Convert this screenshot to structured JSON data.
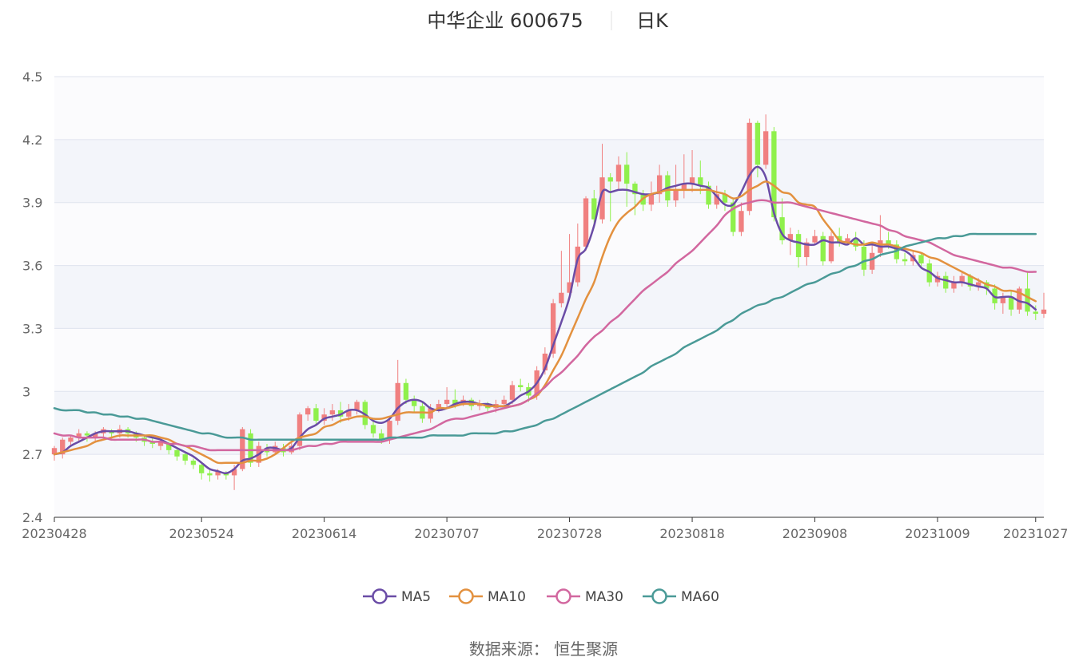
{
  "title": {
    "name": "中华企业 600675",
    "period": "日K"
  },
  "source": "数据来源： 恒生聚源",
  "chart_data": {
    "type": "candlestick",
    "y_ticks": [
      "2.4",
      "2.7",
      "3",
      "3.3",
      "3.6",
      "3.9",
      "4.2",
      "4.5"
    ],
    "y_tick_values": [
      2.4,
      2.7,
      3.0,
      3.3,
      3.6,
      3.9,
      4.2,
      4.5
    ],
    "ylim": [
      2.4,
      4.5
    ],
    "x_ticks": [
      "20230428",
      "20230524",
      "20230614",
      "20230707",
      "20230728",
      "20230818",
      "20230908",
      "20231009",
      "20231027"
    ],
    "x_tick_indices": [
      0,
      18,
      33,
      48,
      63,
      78,
      93,
      108,
      120
    ],
    "up_color": "#f08080",
    "down_color": "#8ff04c",
    "grid": true,
    "legend_position": "bottom",
    "candles": [
      [
        2.7,
        2.73,
        2.67,
        2.74
      ],
      [
        2.7,
        2.77,
        2.68,
        2.78
      ],
      [
        2.76,
        2.78,
        2.74,
        2.79
      ],
      [
        2.78,
        2.8,
        2.76,
        2.82
      ],
      [
        2.8,
        2.79,
        2.76,
        2.81
      ],
      [
        2.78,
        2.8,
        2.76,
        2.81
      ],
      [
        2.8,
        2.82,
        2.78,
        2.83
      ],
      [
        2.81,
        2.8,
        2.78,
        2.82
      ],
      [
        2.8,
        2.82,
        2.78,
        2.84
      ],
      [
        2.82,
        2.8,
        2.78,
        2.83
      ],
      [
        2.8,
        2.78,
        2.76,
        2.81
      ],
      [
        2.78,
        2.76,
        2.74,
        2.79
      ],
      [
        2.76,
        2.75,
        2.73,
        2.78
      ],
      [
        2.74,
        2.76,
        2.72,
        2.77
      ],
      [
        2.75,
        2.72,
        2.7,
        2.76
      ],
      [
        2.72,
        2.69,
        2.67,
        2.73
      ],
      [
        2.7,
        2.67,
        2.65,
        2.71
      ],
      [
        2.67,
        2.65,
        2.63,
        2.68
      ],
      [
        2.65,
        2.61,
        2.58,
        2.66
      ],
      [
        2.61,
        2.6,
        2.57,
        2.63
      ],
      [
        2.6,
        2.62,
        2.58,
        2.63
      ],
      [
        2.61,
        2.6,
        2.58,
        2.62
      ],
      [
        2.6,
        2.63,
        2.53,
        2.65
      ],
      [
        2.63,
        2.82,
        2.62,
        2.83
      ],
      [
        2.8,
        2.66,
        2.64,
        2.82
      ],
      [
        2.66,
        2.74,
        2.64,
        2.76
      ],
      [
        2.73,
        2.71,
        2.69,
        2.75
      ],
      [
        2.71,
        2.74,
        2.7,
        2.76
      ],
      [
        2.73,
        2.71,
        2.69,
        2.75
      ],
      [
        2.71,
        2.74,
        2.7,
        2.76
      ],
      [
        2.74,
        2.89,
        2.72,
        2.9
      ],
      [
        2.89,
        2.92,
        2.86,
        2.93
      ],
      [
        2.92,
        2.86,
        2.84,
        2.94
      ],
      [
        2.86,
        2.89,
        2.84,
        2.92
      ],
      [
        2.89,
        2.91,
        2.86,
        2.94
      ],
      [
        2.91,
        2.88,
        2.85,
        2.95
      ],
      [
        2.88,
        2.91,
        2.86,
        2.94
      ],
      [
        2.91,
        2.95,
        2.89,
        2.96
      ],
      [
        2.95,
        2.84,
        2.82,
        2.96
      ],
      [
        2.84,
        2.8,
        2.78,
        2.86
      ],
      [
        2.8,
        2.77,
        2.75,
        2.82
      ],
      [
        2.77,
        2.86,
        2.75,
        2.88
      ],
      [
        2.86,
        3.04,
        2.84,
        3.15
      ],
      [
        3.04,
        2.96,
        2.94,
        3.06
      ],
      [
        2.96,
        2.93,
        2.9,
        2.98
      ],
      [
        2.93,
        2.87,
        2.85,
        2.95
      ],
      [
        2.87,
        2.92,
        2.85,
        2.94
      ],
      [
        2.92,
        2.94,
        2.9,
        2.96
      ],
      [
        2.94,
        2.96,
        2.92,
        3.02
      ],
      [
        2.96,
        2.94,
        2.92,
        3.01
      ],
      [
        2.94,
        2.96,
        2.93,
        2.98
      ],
      [
        2.96,
        2.93,
        2.91,
        2.97
      ],
      [
        2.93,
        2.94,
        2.91,
        2.96
      ],
      [
        2.94,
        2.92,
        2.9,
        2.95
      ],
      [
        2.92,
        2.94,
        2.9,
        2.96
      ],
      [
        2.94,
        2.96,
        2.92,
        2.98
      ],
      [
        2.96,
        3.03,
        2.94,
        3.05
      ],
      [
        3.03,
        3.02,
        3.0,
        3.06
      ],
      [
        3.02,
        2.98,
        2.95,
        3.04
      ],
      [
        2.98,
        3.1,
        2.96,
        3.12
      ],
      [
        3.1,
        3.18,
        3.08,
        3.21
      ],
      [
        3.18,
        3.42,
        3.16,
        3.44
      ],
      [
        3.42,
        3.47,
        3.4,
        3.67
      ],
      [
        3.47,
        3.52,
        3.45,
        3.75
      ],
      [
        3.52,
        3.69,
        3.5,
        3.8
      ],
      [
        3.69,
        3.92,
        3.67,
        3.93
      ],
      [
        3.92,
        3.82,
        3.78,
        3.96
      ],
      [
        3.82,
        4.02,
        3.8,
        4.18
      ],
      [
        4.02,
        4.0,
        3.81,
        4.04
      ],
      [
        4.0,
        4.08,
        3.96,
        4.12
      ],
      [
        4.08,
        3.99,
        3.88,
        4.14
      ],
      [
        3.99,
        3.94,
        3.84,
        4.0
      ],
      [
        3.94,
        3.89,
        3.86,
        3.96
      ],
      [
        3.89,
        3.94,
        3.86,
        4.0
      ],
      [
        3.94,
        4.03,
        3.9,
        4.08
      ],
      [
        4.03,
        3.91,
        3.88,
        4.05
      ],
      [
        3.91,
        3.96,
        3.88,
        4.08
      ],
      [
        3.96,
        3.99,
        3.92,
        4.13
      ],
      [
        3.99,
        4.02,
        3.95,
        4.15
      ],
      [
        4.02,
        3.98,
        3.94,
        4.1
      ],
      [
        3.98,
        3.89,
        3.87,
        4.0
      ],
      [
        3.89,
        3.94,
        3.87,
        3.98
      ],
      [
        3.94,
        3.9,
        3.86,
        3.96
      ],
      [
        3.9,
        3.76,
        3.74,
        3.92
      ],
      [
        3.76,
        3.86,
        3.74,
        3.9
      ],
      [
        3.86,
        4.28,
        3.84,
        4.3
      ],
      [
        4.28,
        4.08,
        4.02,
        4.29
      ],
      [
        4.08,
        4.24,
        4.06,
        4.32
      ],
      [
        4.24,
        3.83,
        3.81,
        4.26
      ],
      [
        3.83,
        3.72,
        3.7,
        3.92
      ],
      [
        3.72,
        3.75,
        3.65,
        3.78
      ],
      [
        3.75,
        3.64,
        3.59,
        3.77
      ],
      [
        3.64,
        3.71,
        3.6,
        3.73
      ],
      [
        3.71,
        3.74,
        3.7,
        3.77
      ],
      [
        3.74,
        3.62,
        3.6,
        3.76
      ],
      [
        3.62,
        3.74,
        3.61,
        3.76
      ],
      [
        3.74,
        3.71,
        3.69,
        3.78
      ],
      [
        3.71,
        3.73,
        3.7,
        3.75
      ],
      [
        3.73,
        3.69,
        3.67,
        3.76
      ],
      [
        3.69,
        3.58,
        3.55,
        3.72
      ],
      [
        3.58,
        3.66,
        3.56,
        3.7
      ],
      [
        3.66,
        3.72,
        3.64,
        3.84
      ],
      [
        3.72,
        3.7,
        3.68,
        3.76
      ],
      [
        3.7,
        3.63,
        3.61,
        3.72
      ],
      [
        3.63,
        3.62,
        3.6,
        3.66
      ],
      [
        3.62,
        3.65,
        3.6,
        3.67
      ],
      [
        3.65,
        3.61,
        3.59,
        3.66
      ],
      [
        3.61,
        3.52,
        3.5,
        3.63
      ],
      [
        3.52,
        3.55,
        3.5,
        3.57
      ],
      [
        3.55,
        3.49,
        3.47,
        3.57
      ],
      [
        3.49,
        3.52,
        3.47,
        3.55
      ],
      [
        3.52,
        3.55,
        3.5,
        3.57
      ],
      [
        3.55,
        3.5,
        3.48,
        3.56
      ],
      [
        3.5,
        3.52,
        3.48,
        3.54
      ],
      [
        3.52,
        3.49,
        3.46,
        3.53
      ],
      [
        3.49,
        3.42,
        3.39,
        3.51
      ],
      [
        3.42,
        3.45,
        3.37,
        3.47
      ],
      [
        3.45,
        3.39,
        3.36,
        3.48
      ],
      [
        3.39,
        3.49,
        3.37,
        3.5
      ],
      [
        3.49,
        3.38,
        3.36,
        3.57
      ],
      [
        3.38,
        3.37,
        3.34,
        3.41
      ],
      [
        3.37,
        3.39,
        3.35,
        3.47
      ]
    ],
    "series": [
      {
        "name": "MA5",
        "color": "#6a4ca6",
        "values": [
          2.7,
          2.71,
          2.74,
          2.76,
          2.78,
          2.8,
          2.81,
          2.81,
          2.81,
          2.81,
          2.8,
          2.79,
          2.78,
          2.77,
          2.75,
          2.73,
          2.71,
          2.69,
          2.66,
          2.63,
          2.62,
          2.61,
          2.63,
          2.67,
          2.68,
          2.7,
          2.73,
          2.73,
          2.72,
          2.73,
          2.78,
          2.82,
          2.84,
          2.87,
          2.88,
          2.89,
          2.91,
          2.91,
          2.89,
          2.86,
          2.85,
          2.87,
          2.92,
          2.95,
          2.96,
          2.95,
          2.92,
          2.91,
          2.92,
          2.94,
          2.95,
          2.95,
          2.94,
          2.94,
          2.93,
          2.93,
          2.95,
          2.98,
          3.0,
          3.04,
          3.11,
          3.22,
          3.33,
          3.45,
          3.63,
          3.68,
          3.79,
          3.95,
          3.95,
          3.96,
          3.96,
          3.95,
          3.94,
          3.94,
          3.95,
          3.97,
          3.98,
          3.99,
          3.99,
          3.98,
          3.97,
          3.93,
          3.89,
          3.89,
          3.95,
          4.03,
          4.07,
          4.02,
          3.85,
          3.75,
          3.72,
          3.71,
          3.7,
          3.7,
          3.72,
          3.71,
          3.71,
          3.7,
          3.73,
          3.7,
          3.7,
          3.69,
          3.69,
          3.68,
          3.67,
          3.64,
          3.59,
          3.57,
          3.54,
          3.53,
          3.52,
          3.52,
          3.51,
          3.5,
          3.49,
          3.45,
          3.45,
          3.45,
          3.43,
          3.42,
          3.39
        ]
      },
      {
        "name": "MA10",
        "color": "#e3913f",
        "values": [
          2.7,
          2.71,
          2.72,
          2.73,
          2.74,
          2.76,
          2.77,
          2.78,
          2.79,
          2.79,
          2.79,
          2.79,
          2.79,
          2.78,
          2.77,
          2.75,
          2.74,
          2.72,
          2.7,
          2.68,
          2.66,
          2.66,
          2.66,
          2.66,
          2.67,
          2.67,
          2.68,
          2.7,
          2.73,
          2.76,
          2.78,
          2.79,
          2.8,
          2.83,
          2.84,
          2.86,
          2.87,
          2.88,
          2.88,
          2.87,
          2.87,
          2.88,
          2.89,
          2.9,
          2.9,
          2.9,
          2.9,
          2.92,
          2.92,
          2.93,
          2.94,
          2.94,
          2.94,
          2.93,
          2.93,
          2.93,
          2.93,
          2.94,
          2.96,
          2.98,
          3.03,
          3.1,
          3.17,
          3.26,
          3.35,
          3.44,
          3.52,
          3.64,
          3.74,
          3.81,
          3.85,
          3.88,
          3.92,
          3.94,
          3.95,
          3.96,
          3.96,
          3.96,
          3.96,
          3.96,
          3.96,
          3.95,
          3.94,
          3.92,
          3.93,
          3.96,
          3.98,
          4.0,
          3.98,
          3.95,
          3.94,
          3.9,
          3.89,
          3.88,
          3.82,
          3.77,
          3.72,
          3.71,
          3.7,
          3.7,
          3.71,
          3.7,
          3.7,
          3.69,
          3.68,
          3.67,
          3.66,
          3.64,
          3.63,
          3.61,
          3.59,
          3.57,
          3.55,
          3.53,
          3.51,
          3.5,
          3.48,
          3.48,
          3.47,
          3.45,
          3.43
        ]
      },
      {
        "name": "MA30",
        "color": "#d2679f",
        "values": [
          2.8,
          2.79,
          2.79,
          2.78,
          2.78,
          2.78,
          2.78,
          2.77,
          2.77,
          2.77,
          2.77,
          2.77,
          2.76,
          2.76,
          2.75,
          2.75,
          2.74,
          2.74,
          2.73,
          2.72,
          2.72,
          2.72,
          2.72,
          2.72,
          2.72,
          2.72,
          2.72,
          2.72,
          2.72,
          2.72,
          2.73,
          2.74,
          2.74,
          2.75,
          2.75,
          2.76,
          2.76,
          2.76,
          2.76,
          2.76,
          2.76,
          2.77,
          2.78,
          2.79,
          2.8,
          2.81,
          2.82,
          2.84,
          2.86,
          2.87,
          2.87,
          2.88,
          2.89,
          2.9,
          2.91,
          2.92,
          2.93,
          2.94,
          2.96,
          2.99,
          3.02,
          3.06,
          3.09,
          3.13,
          3.17,
          3.22,
          3.26,
          3.29,
          3.33,
          3.36,
          3.4,
          3.44,
          3.48,
          3.51,
          3.54,
          3.57,
          3.61,
          3.64,
          3.67,
          3.71,
          3.75,
          3.79,
          3.84,
          3.87,
          3.89,
          3.9,
          3.91,
          3.91,
          3.9,
          3.9,
          3.9,
          3.89,
          3.88,
          3.87,
          3.86,
          3.85,
          3.84,
          3.83,
          3.82,
          3.81,
          3.8,
          3.79,
          3.77,
          3.76,
          3.74,
          3.73,
          3.72,
          3.71,
          3.69,
          3.67,
          3.65,
          3.64,
          3.63,
          3.62,
          3.61,
          3.6,
          3.59,
          3.59,
          3.58,
          3.57,
          3.57
        ]
      },
      {
        "name": "MA60",
        "color": "#4a9a97",
        "values": [
          2.92,
          2.91,
          2.91,
          2.91,
          2.9,
          2.9,
          2.89,
          2.89,
          2.88,
          2.88,
          2.87,
          2.87,
          2.86,
          2.85,
          2.84,
          2.83,
          2.82,
          2.81,
          2.8,
          2.8,
          2.79,
          2.78,
          2.78,
          2.78,
          2.77,
          2.77,
          2.77,
          2.77,
          2.77,
          2.77,
          2.77,
          2.77,
          2.77,
          2.77,
          2.77,
          2.77,
          2.77,
          2.77,
          2.77,
          2.77,
          2.77,
          2.78,
          2.78,
          2.78,
          2.78,
          2.78,
          2.79,
          2.79,
          2.79,
          2.79,
          2.79,
          2.8,
          2.8,
          2.8,
          2.8,
          2.81,
          2.81,
          2.82,
          2.83,
          2.84,
          2.86,
          2.87,
          2.89,
          2.91,
          2.93,
          2.95,
          2.97,
          2.99,
          3.01,
          3.03,
          3.05,
          3.07,
          3.09,
          3.12,
          3.14,
          3.16,
          3.18,
          3.21,
          3.23,
          3.25,
          3.27,
          3.29,
          3.32,
          3.34,
          3.37,
          3.39,
          3.41,
          3.42,
          3.44,
          3.45,
          3.47,
          3.49,
          3.51,
          3.52,
          3.54,
          3.56,
          3.57,
          3.59,
          3.6,
          3.62,
          3.63,
          3.65,
          3.66,
          3.67,
          3.69,
          3.7,
          3.71,
          3.72,
          3.73,
          3.73,
          3.74,
          3.74,
          3.75,
          3.75,
          3.75,
          3.75,
          3.75,
          3.75,
          3.75,
          3.75,
          3.75
        ]
      }
    ]
  }
}
